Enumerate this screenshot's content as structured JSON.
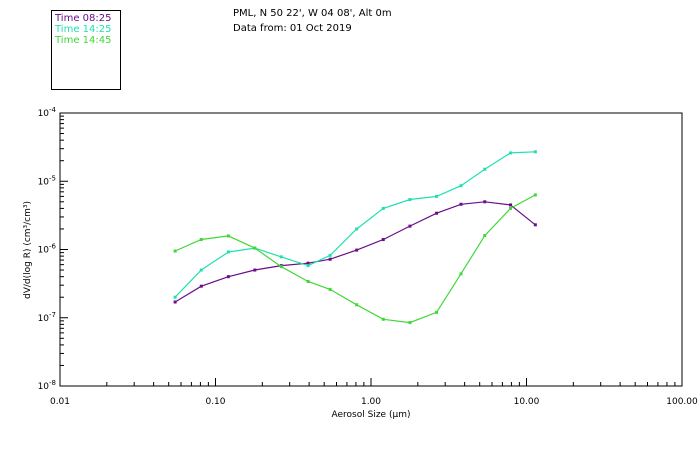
{
  "header": {
    "site": "PML, N 50 22', W 04 08', Alt 0m",
    "date": "Data from: 01 Oct 2019"
  },
  "chart_data": {
    "type": "line",
    "title": "PML, N 50 22', W 04 08', Alt 0m",
    "subtitle": "Data from: 01 Oct 2019",
    "xlabel": "Aerosol Size (µm)",
    "ylabel": "dV/d(log R) (cm³/cm³)",
    "xscale": "log",
    "yscale": "log",
    "xlim": [
      0.01,
      100
    ],
    "ylim": [
      1e-08,
      0.0001
    ],
    "xticks": [
      {
        "value": 0.01,
        "label": "0.01"
      },
      {
        "value": 0.1,
        "label": "0.10"
      },
      {
        "value": 1,
        "label": "1.00"
      },
      {
        "value": 10,
        "label": "10.00"
      },
      {
        "value": 100,
        "label": "100.00"
      }
    ],
    "yticks": [
      {
        "value": 1e-08,
        "mant": "10",
        "exp": "-8"
      },
      {
        "value": 1e-07,
        "mant": "10",
        "exp": "-7"
      },
      {
        "value": 1e-06,
        "mant": "10",
        "exp": "-6"
      },
      {
        "value": 1e-05,
        "mant": "10",
        "exp": "-5"
      },
      {
        "value": 0.0001,
        "mant": "10",
        "exp": "-4"
      }
    ],
    "x": [
      0.055,
      0.081,
      0.121,
      0.179,
      0.265,
      0.394,
      0.546,
      0.809,
      1.199,
      1.78,
      2.64,
      3.79,
      5.39,
      7.89,
      11.4
    ],
    "series": [
      {
        "name": "Time 08:25",
        "color": "#6a0d8a",
        "values": [
          1.7e-07,
          2.9e-07,
          4e-07,
          5e-07,
          5.8e-07,
          6.3e-07,
          7.2e-07,
          9.8e-07,
          1.4e-06,
          2.2e-06,
          3.4e-06,
          4.6e-06,
          5e-06,
          4.5e-06,
          2.3e-06
        ]
      },
      {
        "name": "Time 14:25",
        "color": "#20e0b0",
        "values": [
          2e-07,
          5e-07,
          9.2e-07,
          1.05e-06,
          7.8e-07,
          5.8e-07,
          8.2e-07,
          2e-06,
          4e-06,
          5.4e-06,
          6e-06,
          8.6e-06,
          1.5e-05,
          2.6e-05,
          2.7e-05
        ]
      },
      {
        "name": "Time 14:45",
        "color": "#40d838",
        "values": [
          9.5e-07,
          1.4e-06,
          1.58e-06,
          1.05e-06,
          5.6e-07,
          3.4e-07,
          2.6e-07,
          1.55e-07,
          9.5e-08,
          8.5e-08,
          1.2e-07,
          4.4e-07,
          1.6e-06,
          4e-06,
          6.3e-06
        ]
      }
    ]
  }
}
